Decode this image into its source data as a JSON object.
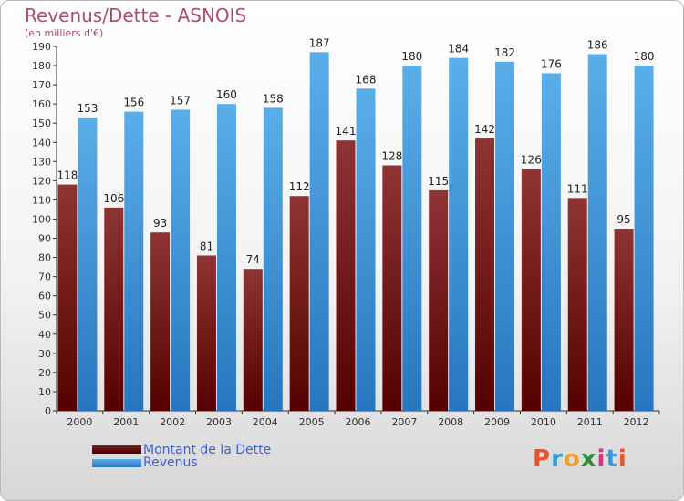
{
  "header": {
    "title": "Revenus/Dette - ASNOIS",
    "subtitle": "(en milliers d'€)"
  },
  "chart_data": {
    "type": "bar",
    "categories": [
      "2000",
      "2001",
      "2002",
      "2003",
      "2004",
      "2005",
      "2006",
      "2007",
      "2008",
      "2009",
      "2010",
      "2011",
      "2012"
    ],
    "series": [
      {
        "name": "Montant de la Dette",
        "values": [
          118,
          106,
          93,
          81,
          74,
          112,
          141,
          128,
          115,
          142,
          126,
          111,
          95
        ],
        "color": "#7a1f1f"
      },
      {
        "name": "Revenus",
        "values": [
          153,
          156,
          157,
          160,
          158,
          187,
          168,
          180,
          184,
          182,
          176,
          186,
          180
        ],
        "color": "#3d94d8"
      }
    ],
    "ylim": [
      0,
      190
    ],
    "ytick_step": 10,
    "grid": false,
    "legend_position": "bottom-left"
  },
  "legend": {
    "items": [
      {
        "label": "Montant de la Dette",
        "color": "#6b0f0f"
      },
      {
        "label": "Revenus",
        "color": "#3d94d8"
      }
    ]
  },
  "logo": {
    "text": "Proxiti",
    "colors": [
      "#e8542a",
      "#3a9ad8",
      "#f0a12a",
      "#2e8b3a",
      "#c23a7a",
      "#3a9ad8",
      "#e8542a"
    ]
  }
}
